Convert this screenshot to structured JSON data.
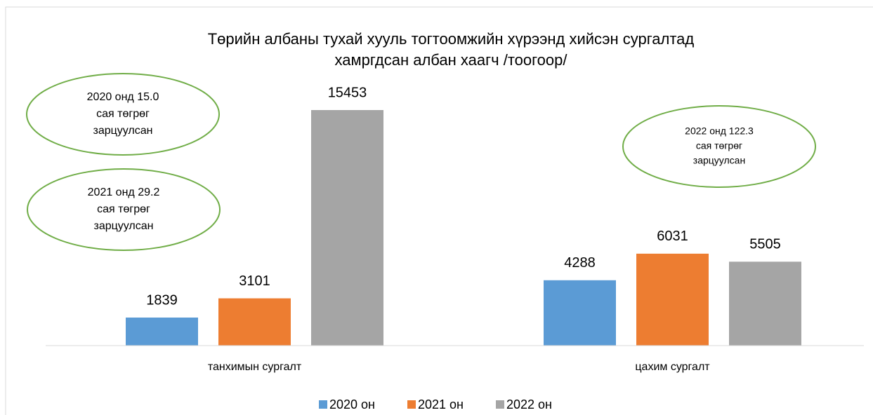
{
  "chart_data": {
    "type": "bar",
    "title": [
      "Төрийн албаны тухай хууль тогтоомжийн хүрээнд хийсэн сургалтад",
      "хамргдсан албан хаагч /тоогоор/"
    ],
    "categories": [
      "танхимын сургалт",
      "цахим сургалт"
    ],
    "series": [
      {
        "name": "2020 он",
        "color": "#5b9bd5",
        "values": [
          1839,
          4288
        ]
      },
      {
        "name": "2021 он",
        "color": "#ed7d31",
        "values": [
          3101,
          6031
        ]
      },
      {
        "name": "2022 он",
        "color": "#a5a5a5",
        "values": [
          15453,
          5505
        ]
      }
    ],
    "legend": "bottom",
    "annotations": [
      {
        "lines": [
          "2020 онд 15.0",
          "сая төгрөг",
          "зарцуулсан"
        ]
      },
      {
        "lines": [
          "2021 онд 29.2",
          "сая төгрөг",
          "зарцуулсан"
        ]
      },
      {
        "lines": [
          "2022 онд 122.3",
          "сая төгрөг",
          "зарцуулсан"
        ]
      }
    ]
  }
}
